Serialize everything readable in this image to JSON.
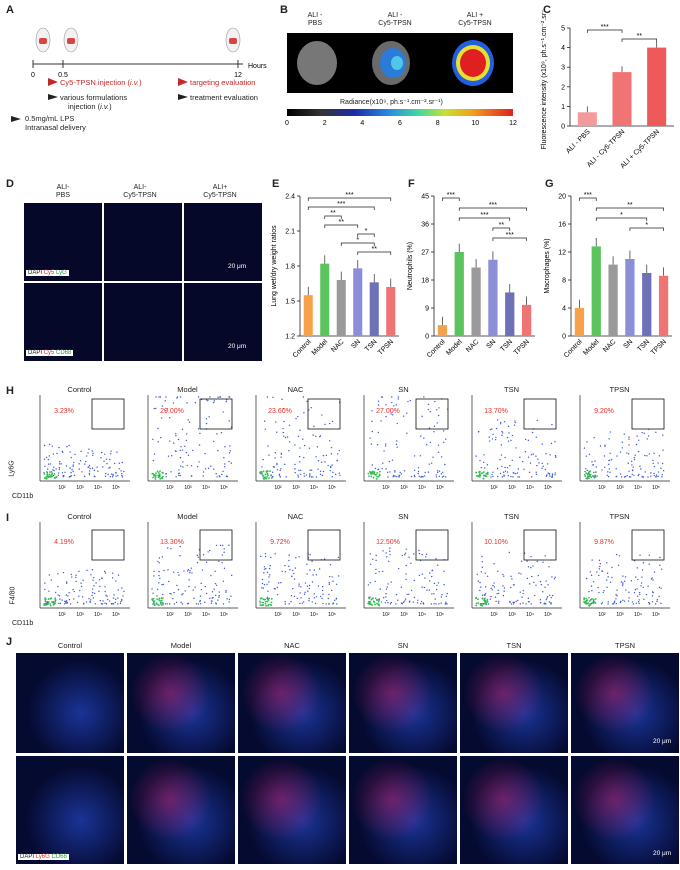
{
  "panels": {
    "A": "A",
    "B": "B",
    "C": "C",
    "D": "D",
    "E": "E",
    "F": "F",
    "G": "G",
    "H": "H",
    "I": "I",
    "J": "J"
  },
  "a": {
    "hours": "Hours",
    "ticks": [
      "0",
      "0.5",
      "12"
    ],
    "l1": "Cy5-TPSN injection (",
    "l1i": "i.v.",
    "l1e": ")",
    "l2": "targeting evaluation",
    "l3a": "various formulations",
    "l3b": "injection (",
    "l3bi": "i.v.",
    "l3be": ")",
    "l4": "treatment evaluation",
    "l5a": "0.5mg/mL LPS",
    "l5b": "Intranasal delivery"
  },
  "b": {
    "groups": [
      [
        "ALI -",
        "PBS"
      ],
      [
        "ALI -",
        "Cy5-TPSN"
      ],
      [
        "ALI +",
        "Cy5-TPSN"
      ]
    ],
    "radiance": "Radiance(x10⁹, ph.s⁻¹.cm⁻².sr⁻¹)",
    "scale": [
      "0",
      "2",
      "4",
      "6",
      "8",
      "10",
      "12"
    ]
  },
  "d": {
    "groups": [
      [
        "ALI-",
        "PBS"
      ],
      [
        "ALI-",
        "Cy5-TPSN"
      ],
      [
        "ALI+",
        "Cy5-TPSN"
      ]
    ],
    "scalebar": "20 μm",
    "legend1": [
      "DAPI",
      "Cy5",
      "LyG"
    ],
    "legend2": [
      "DAPI",
      "Cy5",
      "CD68"
    ]
  },
  "flow": {
    "groups": [
      "Control",
      "Model",
      "NAC",
      "SN",
      "TSN",
      "TPSN"
    ],
    "h_pct": [
      "3.23%",
      "29.00%",
      "23.60%",
      "27.00%",
      "13.70%",
      "9.20%"
    ],
    "i_pct": [
      "4.19%",
      "13.30%",
      "9.72%",
      "12.50%",
      "10.10%",
      "9.87%"
    ],
    "h_ylabel": "Ly6G",
    "i_ylabel": "F4/80",
    "xlabel": "CD11b"
  },
  "j": {
    "groups": [
      "Control",
      "Model",
      "NAC",
      "SN",
      "TSN",
      "TPSN"
    ],
    "scalebar": "20 μm",
    "legend": [
      "DAPI",
      "Ly6G",
      "CD68"
    ]
  },
  "colors": {
    "cy5": "#e8302a",
    "green": "#22c24a",
    "sig": "#e8302a"
  },
  "chart_data": [
    {
      "panel": "C",
      "type": "bar",
      "categories": [
        "ALI - PBS",
        "ALI - Cy5-TPSN",
        "ALI + Cy5-TPSN"
      ],
      "values": [
        0.7,
        2.75,
        4.0
      ],
      "ylabel": "Fluorescence intensity (x10⁹, ph.s⁻¹.cm⁻².sr⁻¹)",
      "ylim": [
        0,
        5
      ],
      "yticks": [
        "0",
        "1",
        "2",
        "3",
        "4",
        "5"
      ],
      "significance": [
        "***",
        "**"
      ],
      "colors": [
        "#f59a9a",
        "#f07474",
        "#ee5a5a"
      ]
    },
    {
      "panel": "E",
      "type": "bar",
      "categories": [
        "Control",
        "Model",
        "NAC",
        "SN",
        "TSN",
        "TPSN"
      ],
      "values": [
        1.55,
        1.82,
        1.68,
        1.78,
        1.66,
        1.62
      ],
      "ylabel": "Lung wet/dry weight ratios",
      "ylim": [
        1.2,
        2.4
      ],
      "yticks": [
        "1.2",
        "1.5",
        "1.8",
        "2.1",
        "2.4"
      ],
      "significance": [
        "***",
        "***",
        "**",
        "**",
        "*",
        "*",
        "**"
      ]
    },
    {
      "panel": "F",
      "type": "bar",
      "categories": [
        "Control",
        "Model",
        "NAC",
        "SN",
        "TSN",
        "TPSN"
      ],
      "values": [
        3.5,
        27,
        22,
        24.5,
        14,
        10
      ],
      "ylabel": "Neutrophils (%)",
      "ylim": [
        0,
        45
      ],
      "yticks": [
        "0",
        "9",
        "18",
        "27",
        "36",
        "45"
      ],
      "significance": [
        "***",
        "***",
        "***",
        "**",
        "***"
      ]
    },
    {
      "panel": "G",
      "type": "bar",
      "categories": [
        "Control",
        "Model",
        "NAC",
        "SN",
        "TSN",
        "TPSN"
      ],
      "values": [
        4,
        12.8,
        10.2,
        11,
        9,
        8.6
      ],
      "ylabel": "Macrophages (%)",
      "ylim": [
        0,
        20
      ],
      "yticks": [
        "0",
        "4",
        "8",
        "12",
        "16",
        "20"
      ],
      "significance": [
        "***",
        "**",
        "*",
        "*"
      ]
    }
  ],
  "bar_colors": [
    "#f5a24a",
    "#5cc45c",
    "#9a9a9a",
    "#8c8fd8",
    "#6e70b8",
    "#f07474"
  ]
}
